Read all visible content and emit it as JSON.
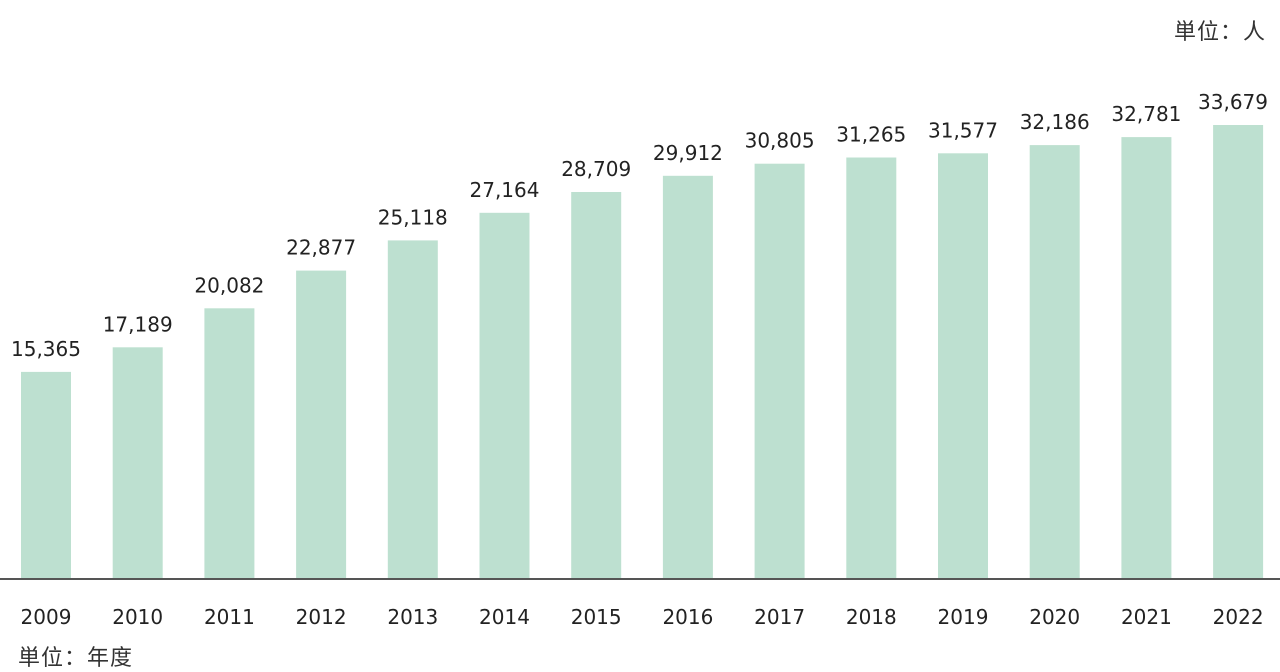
{
  "chart_data": {
    "type": "bar",
    "categories": [
      "2009",
      "2010",
      "2011",
      "2012",
      "2013",
      "2014",
      "2015",
      "2016",
      "2017",
      "2018",
      "2019",
      "2020",
      "2021",
      "2022"
    ],
    "values": [
      15365,
      17189,
      20082,
      22877,
      25118,
      27164,
      28709,
      29912,
      30805,
      31265,
      31577,
      32186,
      32781,
      33679
    ],
    "value_labels": [
      "15,365",
      "17,189",
      "20,082",
      "22,877",
      "25,118",
      "27,164",
      "28,709",
      "29,912",
      "30,805",
      "31,265",
      "31,577",
      "32,186",
      "32,781",
      "33,679"
    ],
    "y_unit_label": "単位：人",
    "x_unit_label": "単位：年度",
    "ylim": [
      0,
      35000
    ],
    "bar_color": "#bde0d0",
    "grid": false
  }
}
